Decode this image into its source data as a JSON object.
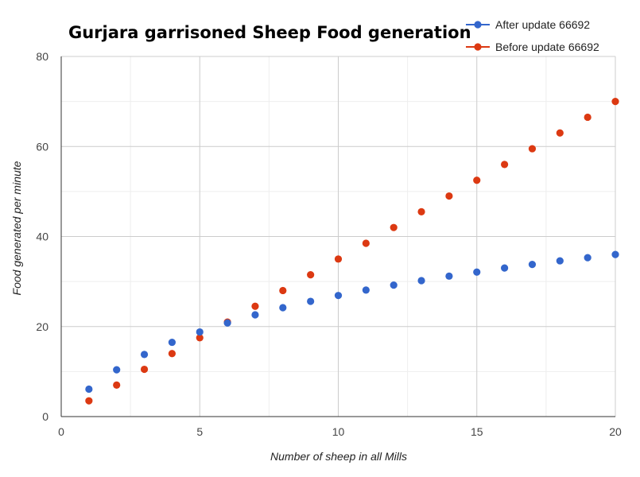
{
  "chart_data": {
    "type": "scatter",
    "title": "Gurjara garrisoned Sheep Food generation",
    "xlabel": "Number of sheep in all Mills",
    "ylabel": "Food generated per minute",
    "xlim": [
      0,
      20
    ],
    "ylim": [
      0,
      80
    ],
    "x_major_ticks": [
      0,
      5,
      10,
      15,
      20
    ],
    "x_minor_step": 2.5,
    "y_major_ticks": [
      0,
      20,
      40,
      60,
      80
    ],
    "y_minor_step": 10,
    "grid": true,
    "legend_position": "top-right",
    "series": [
      {
        "name": "After update 66692",
        "color": "#3366cc",
        "x": [
          1,
          2,
          3,
          4,
          5,
          6,
          7,
          8,
          9,
          10,
          11,
          12,
          13,
          14,
          15,
          16,
          17,
          18,
          19,
          20
        ],
        "values": [
          6.1,
          10.4,
          13.8,
          16.5,
          18.8,
          20.8,
          22.6,
          24.2,
          25.6,
          26.9,
          28.1,
          29.2,
          30.2,
          31.2,
          32.1,
          33.0,
          33.8,
          34.6,
          35.3,
          36.0
        ]
      },
      {
        "name": "Before update 66692",
        "color": "#dc3912",
        "x": [
          1,
          2,
          3,
          4,
          5,
          6,
          7,
          8,
          9,
          10,
          11,
          12,
          13,
          14,
          15,
          16,
          17,
          18,
          19,
          20
        ],
        "values": [
          3.5,
          7.0,
          10.5,
          14.0,
          17.5,
          21.0,
          24.5,
          28.0,
          31.5,
          35.0,
          38.5,
          42.0,
          45.5,
          49.0,
          52.5,
          56.0,
          59.5,
          63.0,
          66.5,
          70.0
        ]
      }
    ]
  }
}
